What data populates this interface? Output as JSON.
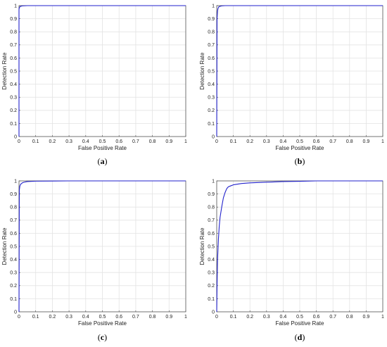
{
  "figure": {
    "panels": [
      {
        "caption_open": "(",
        "caption_letter": "a",
        "caption_close": ")"
      },
      {
        "caption_open": "(",
        "caption_letter": "b",
        "caption_close": ")"
      },
      {
        "caption_open": "(",
        "caption_letter": "c",
        "caption_close": ")"
      },
      {
        "caption_open": "(",
        "caption_letter": "d",
        "caption_close": ")"
      }
    ]
  },
  "chart_data": [
    {
      "type": "line",
      "xlabel": "False Positive Rate",
      "ylabel": "Detection Rate",
      "xlim": [
        0,
        1
      ],
      "ylim": [
        0,
        1
      ],
      "xticks": [
        "0",
        "0.1",
        "0.2",
        "0.3",
        "0.4",
        "0.5",
        "0.6",
        "0.7",
        "0.8",
        "0.9",
        "1"
      ],
      "yticks": [
        "0",
        "0.1",
        "0.2",
        "0.3",
        "0.4",
        "0.5",
        "0.6",
        "0.7",
        "0.8",
        "0.9",
        "1"
      ],
      "grid": true,
      "line_color": "#2222cc",
      "series": [
        {
          "x": [
            0,
            0,
            0.002,
            0.005,
            0.01,
            0.02,
            0.05,
            0.1,
            1
          ],
          "y": [
            0,
            0.97,
            0.985,
            0.99,
            0.995,
            0.998,
            1,
            1,
            1
          ]
        }
      ]
    },
    {
      "type": "line",
      "xlabel": "False Positive Rate",
      "ylabel": "Detection Rate",
      "xlim": [
        0,
        1
      ],
      "ylim": [
        0,
        1
      ],
      "xticks": [
        "0",
        "0.1",
        "0.2",
        "0.3",
        "0.4",
        "0.5",
        "0.6",
        "0.7",
        "0.8",
        "0.9",
        "1"
      ],
      "yticks": [
        "0",
        "0.1",
        "0.2",
        "0.3",
        "0.4",
        "0.5",
        "0.6",
        "0.7",
        "0.8",
        "0.9",
        "1"
      ],
      "grid": true,
      "line_color": "#2222cc",
      "series": [
        {
          "x": [
            0,
            0.002,
            0.005,
            0.008,
            0.012,
            0.02,
            0.03,
            0.05,
            0.1,
            1
          ],
          "y": [
            0,
            0.9,
            0.96,
            0.98,
            0.99,
            0.995,
            0.998,
            1,
            1,
            1
          ]
        }
      ]
    },
    {
      "type": "line",
      "xlabel": "False Positive Rate",
      "ylabel": "Detection Rate",
      "xlim": [
        0,
        1
      ],
      "ylim": [
        0,
        1
      ],
      "xticks": [
        "0",
        "0.1",
        "0.2",
        "0.3",
        "0.4",
        "0.5",
        "0.6",
        "0.7",
        "0.8",
        "0.9",
        "1"
      ],
      "yticks": [
        "0",
        "0.1",
        "0.2",
        "0.3",
        "0.4",
        "0.5",
        "0.6",
        "0.7",
        "0.8",
        "0.9",
        "1"
      ],
      "grid": true,
      "line_color": "#2222cc",
      "series": [
        {
          "x": [
            0,
            0.002,
            0.005,
            0.01,
            0.02,
            0.03,
            0.05,
            0.1,
            0.2,
            0.3,
            1
          ],
          "y": [
            0,
            0.93,
            0.96,
            0.975,
            0.985,
            0.99,
            0.995,
            0.998,
            0.999,
            1,
            1
          ]
        }
      ]
    },
    {
      "type": "line",
      "xlabel": "False Positive Rate",
      "ylabel": "Detection Rate",
      "xlim": [
        0,
        1
      ],
      "ylim": [
        0,
        1
      ],
      "xticks": [
        "0",
        "0.1",
        "0.2",
        "0.3",
        "0.4",
        "0.5",
        "0.6",
        "0.7",
        "0.8",
        "0.9",
        "1"
      ],
      "yticks": [
        "0",
        "0.1",
        "0.2",
        "0.3",
        "0.4",
        "0.5",
        "0.6",
        "0.7",
        "0.8",
        "0.9",
        "1"
      ],
      "grid": true,
      "line_color": "#2222cc",
      "series": [
        {
          "x": [
            0,
            0.002,
            0.005,
            0.01,
            0.015,
            0.02,
            0.03,
            0.04,
            0.05,
            0.06,
            0.07,
            0.08,
            0.1,
            0.15,
            0.2,
            0.3,
            0.4,
            0.5,
            0.6,
            1
          ],
          "y": [
            0,
            0.2,
            0.4,
            0.55,
            0.65,
            0.72,
            0.8,
            0.87,
            0.91,
            0.94,
            0.955,
            0.96,
            0.97,
            0.98,
            0.985,
            0.99,
            0.995,
            0.997,
            1,
            1
          ]
        }
      ]
    }
  ]
}
